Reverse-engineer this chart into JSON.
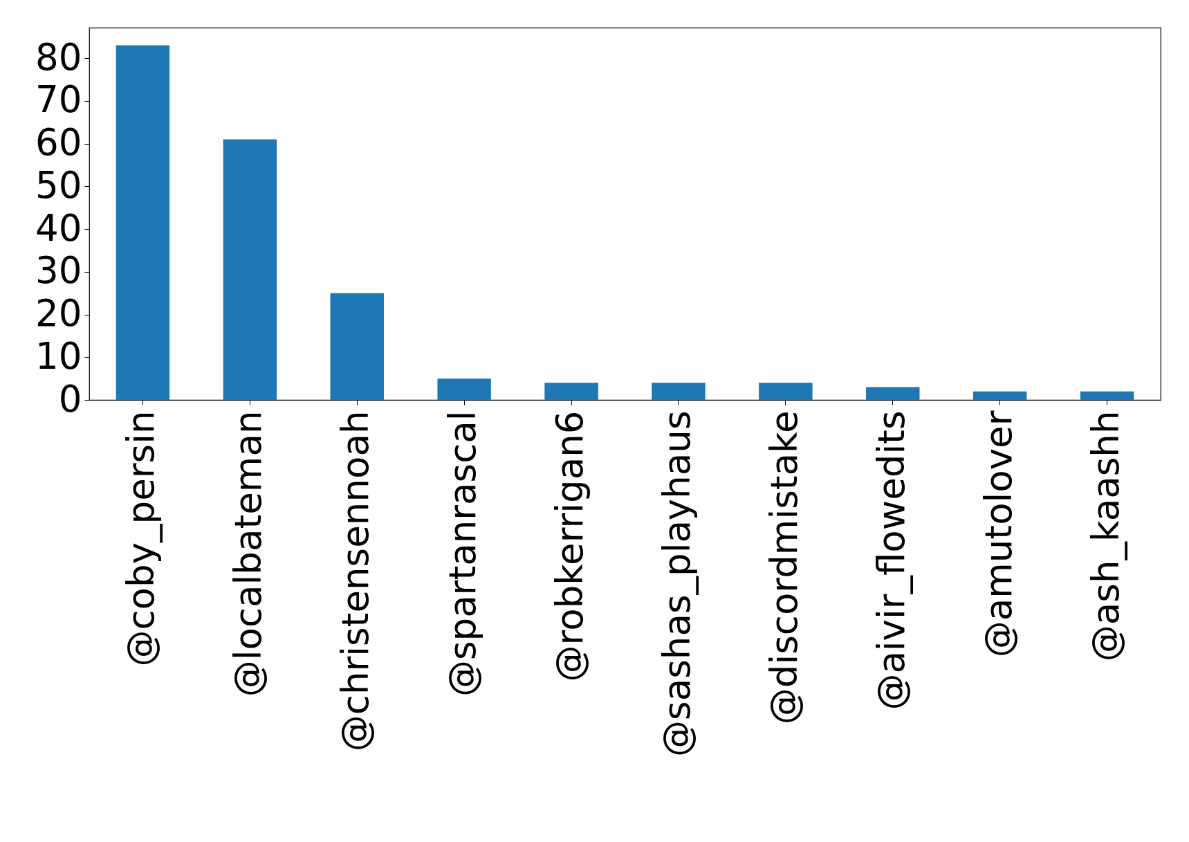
{
  "chart_data": {
    "type": "bar",
    "categories": [
      "@coby_persin",
      "@localbateman",
      "@christensennoah",
      "@spartanrascal",
      "@robkerrigan6",
      "@sashas_playhaus",
      "@discordmistake",
      "@aivir_flowedits",
      "@amutolover",
      "@ash_kaashh"
    ],
    "values": [
      83,
      61,
      25,
      5,
      4,
      4,
      4,
      3,
      2,
      2
    ],
    "color": "#1f77b4",
    "ylim": [
      0,
      87.15
    ],
    "yticks": [
      0,
      10,
      20,
      30,
      40,
      50,
      60,
      70,
      80
    ],
    "grid": false
  }
}
